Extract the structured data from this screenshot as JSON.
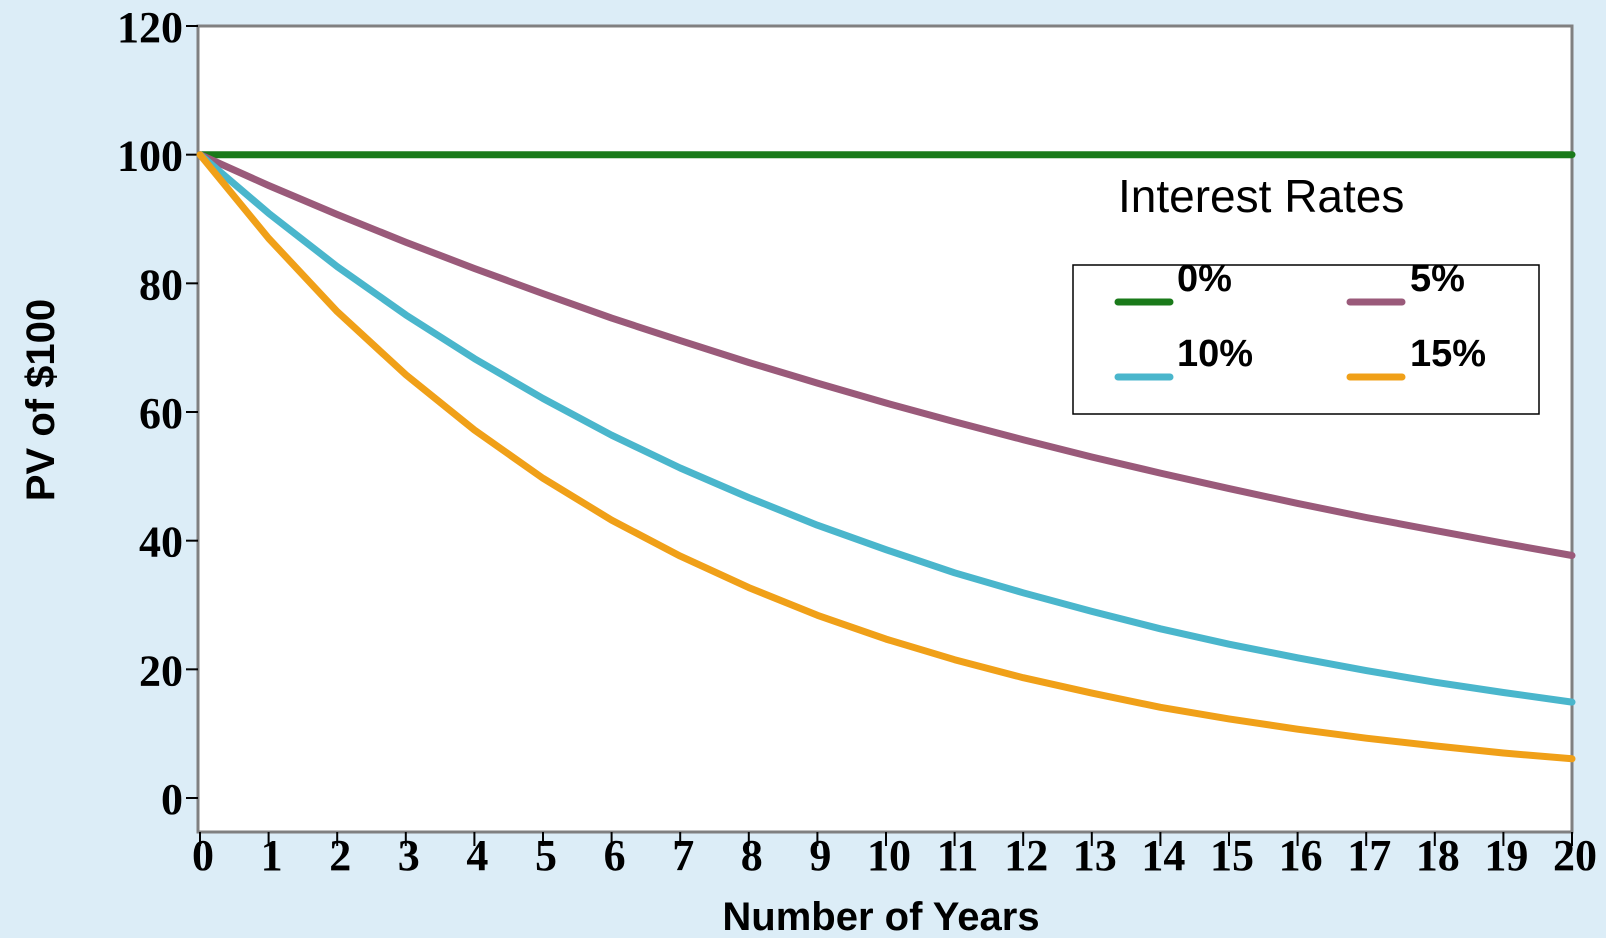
{
  "chart_data": {
    "type": "line",
    "xlabel": "Number of Years",
    "ylabel": "PV of $100",
    "x": [
      0,
      1,
      2,
      3,
      4,
      5,
      6,
      7,
      8,
      9,
      10,
      11,
      12,
      13,
      14,
      15,
      16,
      17,
      18,
      19,
      20
    ],
    "x_tick_labels": [
      "0",
      "1",
      "2",
      "3",
      "4",
      "5",
      "6",
      "7",
      "8",
      "9",
      "10",
      "11",
      "12",
      "13",
      "14",
      "15",
      "16",
      "17",
      "18",
      "19",
      "20"
    ],
    "y_tick_labels": [
      "0",
      "20",
      "40",
      "60",
      "80",
      "100",
      "120"
    ],
    "ylim": [
      0,
      120
    ],
    "xlim": [
      0,
      20
    ],
    "legend": {
      "title": "Interest Rates",
      "placement": "upper-right"
    },
    "grid": false,
    "series": [
      {
        "name": "0%",
        "color": "#1a7a1a",
        "values": [
          100,
          100,
          100,
          100,
          100,
          100,
          100,
          100,
          100,
          100,
          100,
          100,
          100,
          100,
          100,
          100,
          100,
          100,
          100,
          100,
          100
        ]
      },
      {
        "name": "5%",
        "color": "#9a5a7a",
        "values": [
          100,
          95.2,
          90.7,
          86.4,
          82.3,
          78.4,
          74.6,
          71.1,
          67.7,
          64.5,
          61.4,
          58.5,
          55.7,
          53.0,
          50.5,
          48.1,
          45.8,
          43.6,
          41.6,
          39.6,
          37.7
        ]
      },
      {
        "name": "10%",
        "color": "#4ab6cc",
        "values": [
          100,
          90.9,
          82.6,
          75.1,
          68.3,
          62.1,
          56.4,
          51.3,
          46.7,
          42.4,
          38.6,
          35.0,
          31.9,
          29.0,
          26.3,
          23.9,
          21.8,
          19.8,
          18.0,
          16.4,
          14.9
        ]
      },
      {
        "name": "15%",
        "color": "#f0a018",
        "values": [
          100,
          87.0,
          75.6,
          65.8,
          57.2,
          49.7,
          43.2,
          37.6,
          32.7,
          28.4,
          24.7,
          21.5,
          18.7,
          16.3,
          14.1,
          12.3,
          10.7,
          9.3,
          8.1,
          7.0,
          6.1
        ]
      }
    ]
  }
}
